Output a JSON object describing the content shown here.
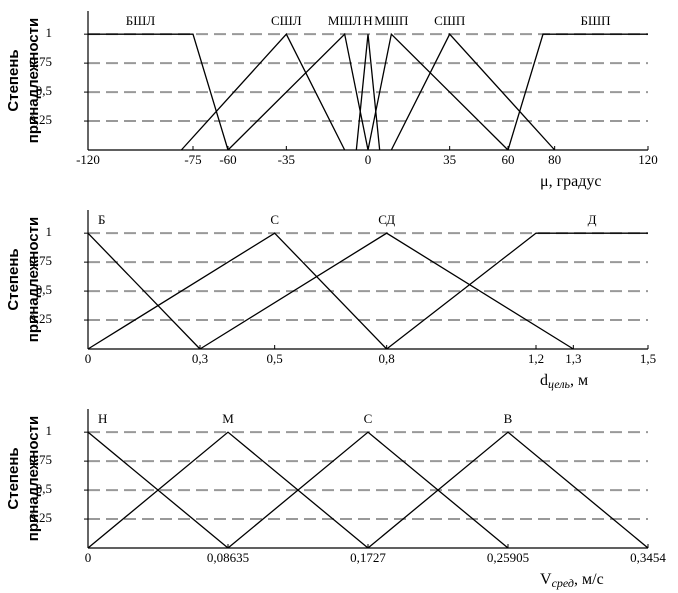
{
  "chart_data": [
    {
      "type": "line",
      "ylabel": [
        "Степень",
        "принадлежности"
      ],
      "xlabel": {
        "text": "μ, градус"
      },
      "xlim": [
        -120,
        120
      ],
      "ylim": [
        0,
        1.2
      ],
      "xticks": [
        -120,
        -75,
        -60,
        -35,
        0,
        35,
        60,
        80,
        120
      ],
      "yticks": [
        {
          "value": 0.25,
          "label": "0,25"
        },
        {
          "value": 0.5,
          "label": "0,5"
        },
        {
          "value": 0.75,
          "label": "0,75"
        },
        1
      ],
      "grid": true,
      "series": [
        {
          "name": "БШЛ",
          "color": "#000000",
          "x": [
            -120,
            -75,
            -60
          ],
          "values": [
            1,
            1,
            0
          ]
        },
        {
          "name": "СШЛ",
          "color": "#000000",
          "x": [
            -80,
            -35,
            -10
          ],
          "values": [
            0,
            1,
            0
          ]
        },
        {
          "name": "МШЛ",
          "color": "#000000",
          "x": [
            -60,
            -10,
            0
          ],
          "values": [
            0,
            1,
            0
          ]
        },
        {
          "name": "Н",
          "color": "#000000",
          "x": [
            -5,
            0,
            5
          ],
          "values": [
            0,
            1,
            0
          ]
        },
        {
          "name": "МШП",
          "color": "#000000",
          "x": [
            0,
            10,
            60
          ],
          "values": [
            0,
            1,
            0
          ]
        },
        {
          "name": "СШП",
          "color": "#000000",
          "x": [
            10,
            35,
            80
          ],
          "values": [
            0,
            1,
            0
          ]
        },
        {
          "name": "БШП",
          "color": "#000000",
          "x": [
            60,
            75,
            120
          ],
          "values": [
            0,
            1,
            1
          ]
        }
      ]
    },
    {
      "type": "line",
      "ylabel": [
        "Степень",
        "принадлежности"
      ],
      "xlabel": {
        "text": "d",
        "subscript": "цель",
        "suffix": ", м"
      },
      "xlim": [
        0,
        1.5
      ],
      "ylim": [
        0,
        1.2
      ],
      "xticks": [
        0,
        {
          "value": 0.3,
          "label": "0,3"
        },
        {
          "value": 0.5,
          "label": "0,5"
        },
        {
          "value": 0.8,
          "label": "0,8"
        },
        {
          "value": 1.2,
          "label": "1,2"
        },
        {
          "value": 1.3,
          "label": "1,3"
        },
        {
          "value": 1.5,
          "label": "1,5"
        }
      ],
      "yticks": [
        {
          "value": 0.25,
          "label": "0,25"
        },
        {
          "value": 0.5,
          "label": "0,5"
        },
        {
          "value": 0.75,
          "label": "0,75"
        },
        1
      ],
      "grid": true,
      "series": [
        {
          "name": "Б",
          "color": "#000000",
          "x": [
            0,
            0.3
          ],
          "values": [
            1,
            0
          ]
        },
        {
          "name": "С",
          "color": "#000000",
          "x": [
            0,
            0.5,
            0.8
          ],
          "values": [
            0,
            1,
            0
          ]
        },
        {
          "name": "СД",
          "color": "#000000",
          "x": [
            0.3,
            0.8,
            1.3
          ],
          "values": [
            0,
            1,
            0
          ]
        },
        {
          "name": "Д",
          "color": "#000000",
          "x": [
            0.8,
            1.2,
            1.5
          ],
          "values": [
            0,
            1,
            1
          ]
        }
      ]
    },
    {
      "type": "line",
      "ylabel": [
        "Степень",
        "принадлежности"
      ],
      "xlabel": {
        "text": "V",
        "subscript": "сред",
        "suffix": ", м/с"
      },
      "xlim": [
        0,
        0.3454
      ],
      "ylim": [
        0,
        1.2
      ],
      "xticks": [
        0,
        {
          "value": 0.08635,
          "label": "0,08635"
        },
        {
          "value": 0.1727,
          "label": "0,1727"
        },
        {
          "value": 0.25905,
          "label": "0,25905"
        },
        {
          "value": 0.3454,
          "label": "0,3454"
        }
      ],
      "yticks": [
        {
          "value": 0.25,
          "label": "0,25"
        },
        {
          "value": 0.5,
          "label": "0,5"
        },
        {
          "value": 0.75,
          "label": "0,75"
        },
        1
      ],
      "grid": true,
      "series": [
        {
          "name": "Н",
          "color": "#000000",
          "x": [
            0,
            0.08635
          ],
          "values": [
            1,
            0
          ]
        },
        {
          "name": "М",
          "color": "#000000",
          "x": [
            0,
            0.08635,
            0.1727
          ],
          "values": [
            0,
            1,
            0
          ]
        },
        {
          "name": "С",
          "color": "#000000",
          "x": [
            0.08635,
            0.1727,
            0.25905
          ],
          "values": [
            0,
            1,
            0
          ]
        },
        {
          "name": "В",
          "color": "#000000",
          "x": [
            0.1727,
            0.25905,
            0.3454
          ],
          "values": [
            0,
            1,
            0
          ]
        }
      ]
    }
  ]
}
